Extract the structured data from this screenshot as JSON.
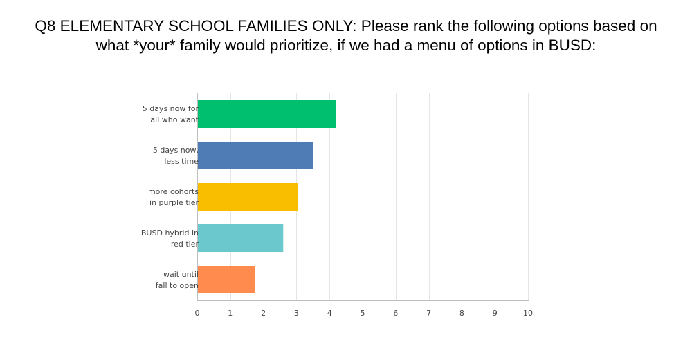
{
  "title_lines": [
    "Q8 ELEMENTARY SCHOOL FAMILIES ONLY: Please rank the following options based on",
    "what *your* family would prioritize, if we had a menu of options in BUSD:"
  ],
  "chart_data": {
    "type": "bar",
    "orientation": "horizontal",
    "title": "Q8 ELEMENTARY SCHOOL FAMILIES ONLY: Please rank the following options based on what *your* family would prioritize, if we had a menu of options in BUSD:",
    "categories": [
      [
        "5 days now for",
        "all who want"
      ],
      [
        "5 days now,",
        "less time"
      ],
      [
        "more cohorts",
        "in purple tier"
      ],
      [
        "BUSD hybrid in",
        "red tier"
      ],
      [
        "wait until",
        "fall to open"
      ]
    ],
    "values": [
      4.2,
      3.5,
      3.05,
      2.6,
      1.75
    ],
    "colors": [
      "#00bf6f",
      "#507cb6",
      "#f9be00",
      "#6bc8cd",
      "#ff8b4f"
    ],
    "xlim": [
      0,
      10
    ],
    "xticks": [
      "0",
      "1",
      "2",
      "3",
      "4",
      "5",
      "6",
      "7",
      "8",
      "9",
      "10"
    ],
    "grid": true,
    "legend": "none",
    "xlabel": "",
    "ylabel": ""
  }
}
